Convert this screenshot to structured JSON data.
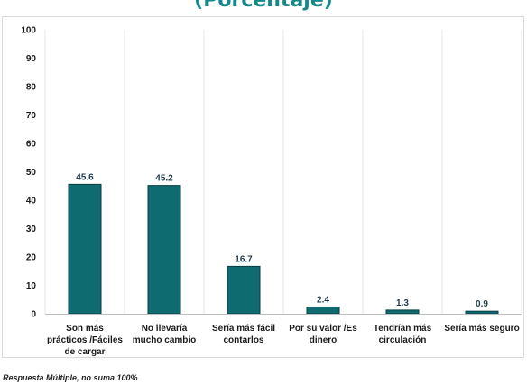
{
  "chart_data": {
    "type": "bar",
    "title": "(Porcentaje)",
    "categories": [
      [
        "Son más",
        "prácticos /Fáciles",
        "de cargar"
      ],
      [
        "No llevaría",
        "mucho cambio"
      ],
      [
        "Sería más fácil",
        "contarlos"
      ],
      [
        "Por su valor /Es",
        "dinero"
      ],
      [
        "Tendrían más",
        "circulación"
      ],
      [
        "Sería más seguro"
      ]
    ],
    "values": [
      45.6,
      45.2,
      16.7,
      2.4,
      1.3,
      0.9
    ],
    "data_labels": [
      "45.6",
      "45.2",
      "16.7",
      "2.4",
      "1.3",
      "0.9"
    ],
    "ylim": [
      0,
      100
    ],
    "yticks": [
      0,
      10,
      20,
      30,
      40,
      50,
      60,
      70,
      80,
      90,
      100
    ],
    "bar_color": "#0e6b70",
    "grid": "vertical",
    "legend": "none"
  },
  "footnote": "Respuesta Múltiple, no suma 100%"
}
